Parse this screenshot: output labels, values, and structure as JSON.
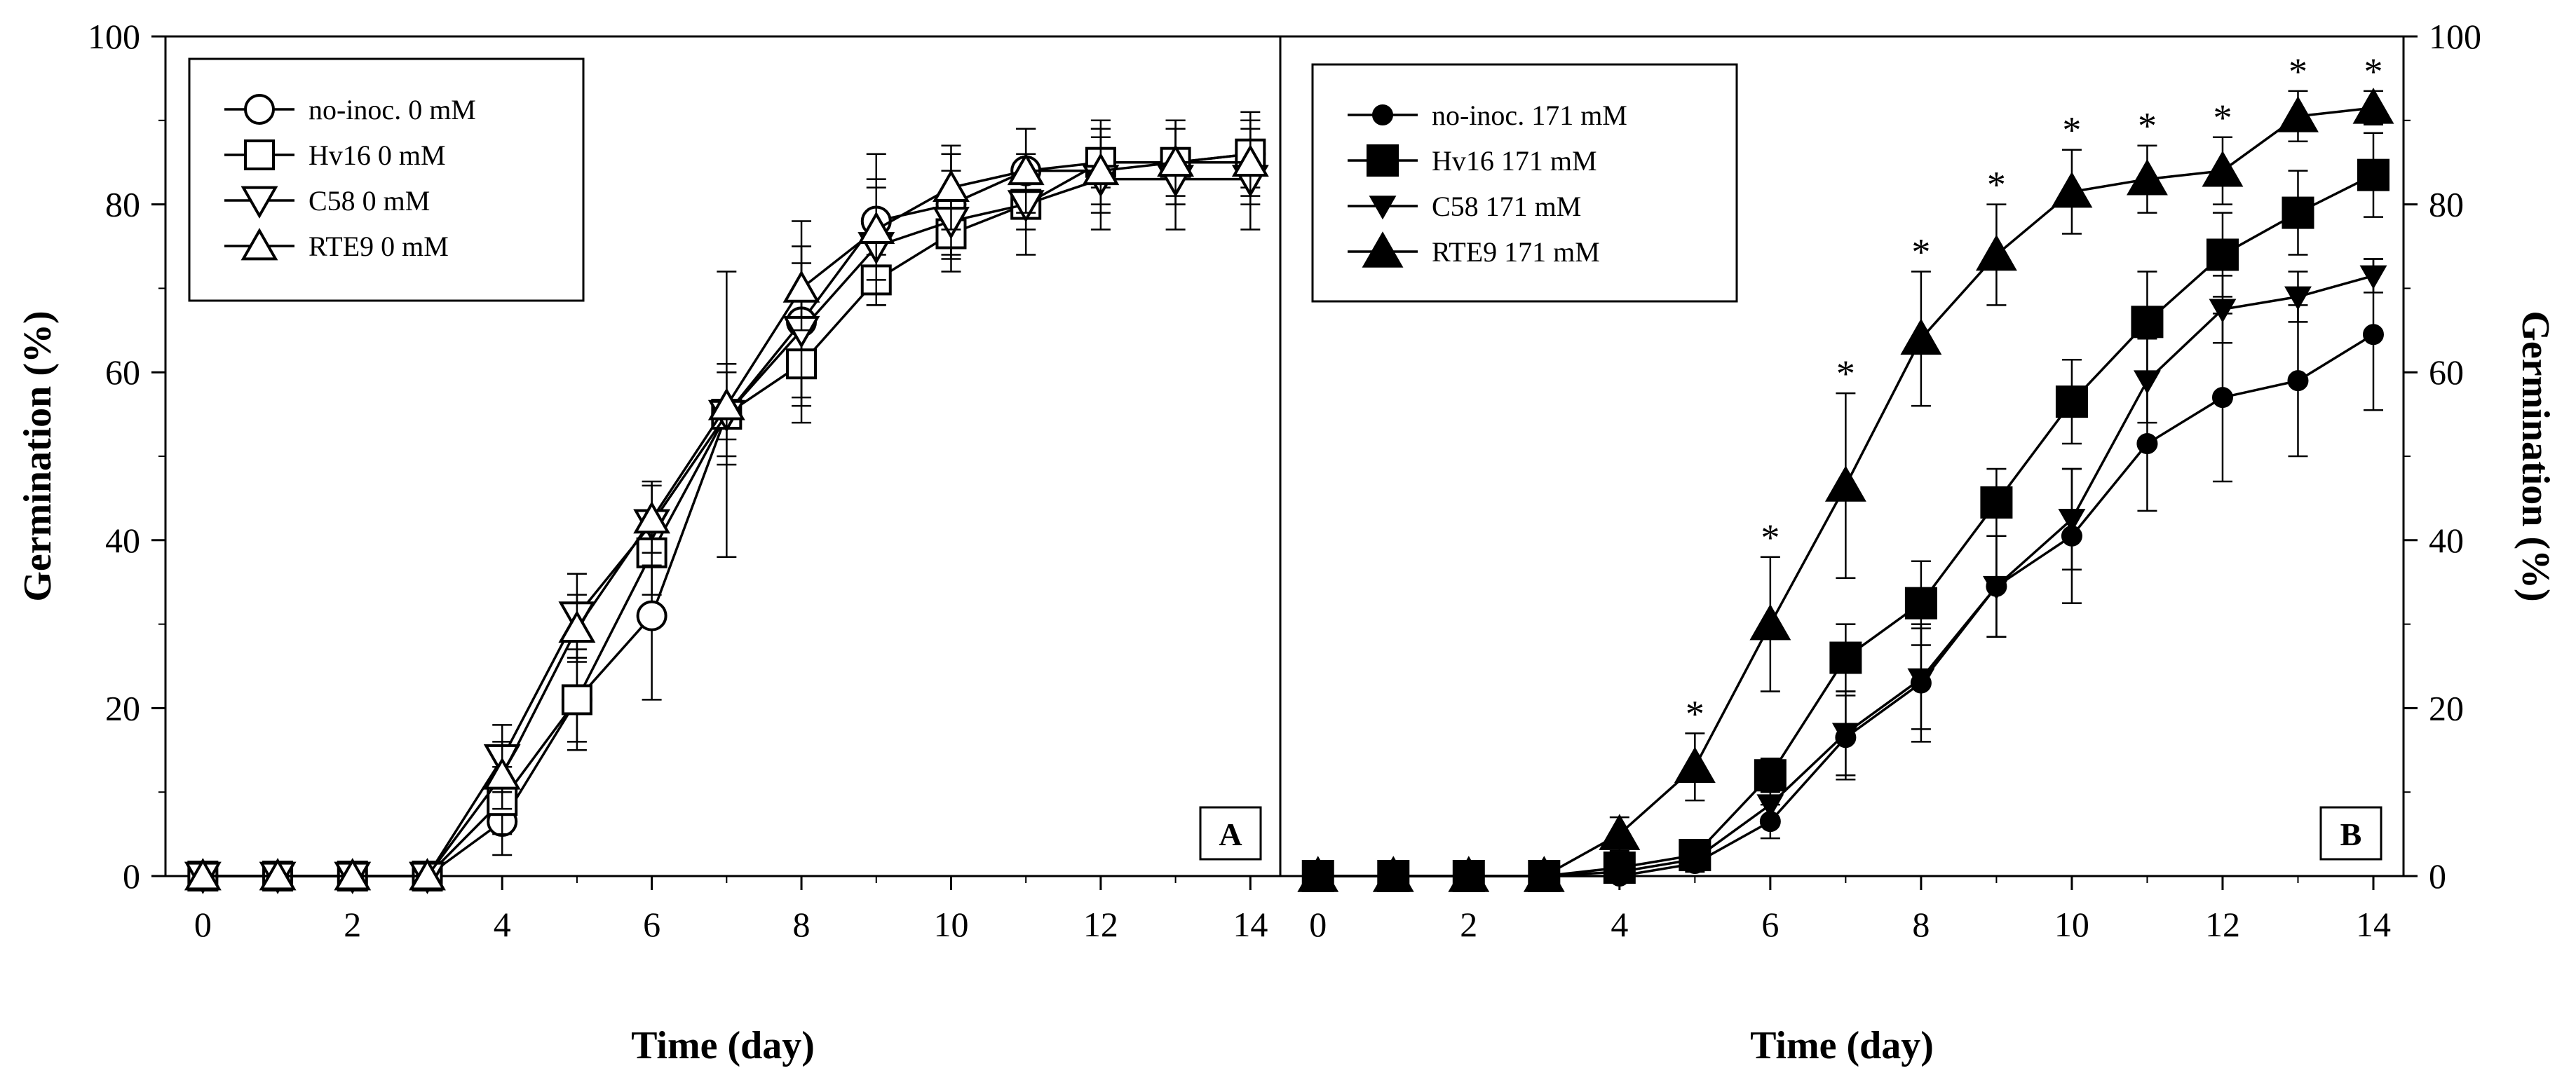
{
  "chart_data": [
    {
      "type": "line",
      "panel": "A",
      "xlabel": "Time (day)",
      "ylabel": "Germination (%)",
      "xlim": [
        -0.5,
        14.4
      ],
      "ylim": [
        0,
        100
      ],
      "xticks": [
        "0",
        "2",
        "4",
        "6",
        "8",
        "10",
        "12",
        "14"
      ],
      "yticks": [
        "0",
        "20",
        "40",
        "60",
        "80",
        "100"
      ],
      "legend_position": "top-left",
      "x": [
        0,
        1,
        2,
        3,
        4,
        5,
        6,
        7,
        8,
        9,
        10,
        11,
        12,
        13,
        14
      ],
      "series": [
        {
          "name": "no-inoc. 0 mM",
          "marker": "circle-open",
          "values": [
            0,
            0,
            0,
            0,
            6.5,
            21,
            31,
            55,
            66,
            78,
            80,
            84,
            85,
            85,
            86
          ],
          "errors": [
            0,
            0,
            0,
            0,
            4,
            6,
            10,
            17,
            12,
            8,
            6,
            5,
            5,
            5,
            5
          ]
        },
        {
          "name": "Hv16 0 mM",
          "marker": "square-open",
          "values": [
            0,
            0,
            0,
            0,
            9,
            21,
            38.5,
            55,
            61,
            71,
            76.5,
            80,
            85,
            85,
            86
          ],
          "errors": [
            0,
            0,
            0,
            0,
            4,
            5,
            5,
            5,
            5,
            3,
            3,
            3,
            3,
            4,
            4
          ]
        },
        {
          "name": "C58 0 mM",
          "marker": "triangle-down-open",
          "values": [
            0,
            0,
            0,
            0,
            14,
            31,
            42,
            55,
            65,
            75,
            78,
            80,
            83,
            83,
            83
          ],
          "errors": [
            0,
            0,
            0,
            0,
            4,
            5,
            5,
            6,
            8,
            7,
            6,
            6,
            6,
            6,
            6
          ]
        },
        {
          "name": "RTE9 0 mM",
          "marker": "triangle-up-open",
          "values": [
            0,
            0,
            0,
            0,
            12,
            29.5,
            42.5,
            56,
            70,
            77,
            82,
            84,
            84,
            85,
            85
          ],
          "errors": [
            0,
            0,
            0,
            0,
            4,
            4,
            4,
            4,
            5,
            6,
            5,
            5,
            5,
            5,
            5
          ]
        }
      ],
      "annotations": [
        "A"
      ]
    },
    {
      "type": "line",
      "panel": "B",
      "xlabel": "Time (day)",
      "ylabel": "Germination (%)",
      "xlim": [
        -0.5,
        14.4
      ],
      "ylim": [
        0,
        100
      ],
      "xticks": [
        "0",
        "2",
        "4",
        "6",
        "8",
        "10",
        "12",
        "14"
      ],
      "yticks": [
        "0",
        "20",
        "40",
        "60",
        "80",
        "100"
      ],
      "legend_position": "top-left",
      "x": [
        0,
        1,
        2,
        3,
        4,
        5,
        6,
        7,
        8,
        9,
        10,
        11,
        12,
        13,
        14
      ],
      "series": [
        {
          "name": "no-inoc. 171 mM",
          "marker": "circle-filled",
          "values": [
            0,
            0,
            0,
            0,
            0,
            1.5,
            6.5,
            16.5,
            23,
            34.5,
            40.5,
            51.5,
            57,
            59,
            64.5
          ],
          "errors": [
            0,
            0,
            0,
            0,
            0,
            1,
            2,
            5,
            7,
            6,
            8,
            8,
            10,
            9,
            9
          ]
        },
        {
          "name": "Hv16 171 mM",
          "marker": "square-filled",
          "values": [
            0,
            0,
            0,
            0,
            1,
            2.5,
            12,
            26,
            32.5,
            44.5,
            56.5,
            66,
            74,
            79,
            83.5
          ],
          "errors": [
            0,
            0,
            0,
            0,
            1,
            1,
            2,
            4,
            5,
            4,
            5,
            6,
            5,
            5,
            5
          ]
        },
        {
          "name": "C58 171 mM",
          "marker": "triangle-down-filled",
          "values": [
            0,
            0,
            0,
            0,
            0.5,
            2,
            8.5,
            17,
            23.5,
            34.5,
            42.5,
            59,
            67.5,
            69,
            71.5
          ],
          "errors": [
            0,
            0,
            0,
            0,
            0.5,
            1,
            2,
            5,
            6,
            6,
            6,
            5,
            4,
            3,
            2
          ]
        },
        {
          "name": "RTE9 171 mM",
          "marker": "triangle-up-filled",
          "values": [
            0,
            0,
            0,
            0,
            5,
            13,
            30,
            46.5,
            64,
            74,
            81.5,
            83,
            84,
            90.5,
            91.5
          ],
          "errors": [
            0,
            0,
            0,
            0,
            2,
            4,
            8,
            11,
            8,
            6,
            5,
            4,
            4,
            3,
            2
          ]
        }
      ],
      "significance": {
        "label": "*",
        "x": [
          5,
          6,
          7,
          8,
          9,
          10,
          11,
          12,
          13,
          14
        ]
      },
      "annotations": [
        "B"
      ]
    }
  ]
}
